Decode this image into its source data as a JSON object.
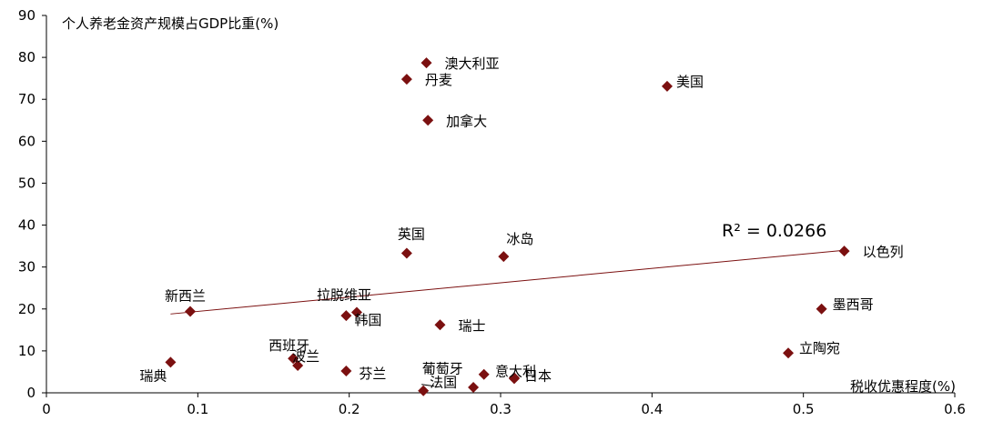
{
  "chart_data": {
    "type": "scatter",
    "ylabel": "个人养老金资产规模占GDP比重(%)",
    "xlabel": "税收优惠程度(%)",
    "xlim": [
      0,
      0.6
    ],
    "ylim": [
      0,
      90
    ],
    "xticks": [
      "0",
      "0.1",
      "0.2",
      "0.3",
      "0.4",
      "0.5",
      "0.6"
    ],
    "xtick_values": [
      0,
      0.1,
      0.2,
      0.3,
      0.4,
      0.5,
      0.6
    ],
    "yticks": [
      "0",
      "10",
      "20",
      "30",
      "40",
      "50",
      "60",
      "70",
      "80",
      "90"
    ],
    "ytick_values": [
      0,
      10,
      20,
      30,
      40,
      50,
      60,
      70,
      80,
      90
    ],
    "grid": false,
    "marker": "diamond",
    "marker_color": "#7b1010",
    "trendline_color": "#7b1010",
    "r_squared_label": "R² = 0.0266",
    "trendline": {
      "x": [
        0.082,
        0.527
      ],
      "y": [
        18.8,
        34
      ]
    },
    "points": [
      {
        "label": "澳大利亚",
        "x": 0.251,
        "y": 78.7
      },
      {
        "label": "丹麦",
        "x": 0.238,
        "y": 74.8
      },
      {
        "label": "美国",
        "x": 0.41,
        "y": 73.1
      },
      {
        "label": "加拿大",
        "x": 0.252,
        "y": 65.0
      },
      {
        "label": "英国",
        "x": 0.238,
        "y": 33.3
      },
      {
        "label": "冰岛",
        "x": 0.302,
        "y": 32.5
      },
      {
        "label": "以色列",
        "x": 0.527,
        "y": 33.8
      },
      {
        "label": "新西兰",
        "x": 0.095,
        "y": 19.4
      },
      {
        "label": "拉脱维亚",
        "x": 0.205,
        "y": 19.2
      },
      {
        "label": "韩国",
        "x": 0.198,
        "y": 18.4
      },
      {
        "label": "墨西哥",
        "x": 0.512,
        "y": 20.0
      },
      {
        "label": "瑞士",
        "x": 0.26,
        "y": 16.2
      },
      {
        "label": "立陶宛",
        "x": 0.49,
        "y": 9.5
      },
      {
        "label": "西班牙",
        "x": 0.163,
        "y": 8.2
      },
      {
        "label": "波兰",
        "x": 0.166,
        "y": 6.5
      },
      {
        "label": "瑞典",
        "x": 0.082,
        "y": 7.3
      },
      {
        "label": "芬兰",
        "x": 0.198,
        "y": 5.2
      },
      {
        "label": "葡萄牙",
        "x": 0.289,
        "y": 4.4
      },
      {
        "label": "意大利",
        "x": 0.309,
        "y": 3.6
      },
      {
        "label": "日本",
        "x": 0.309,
        "y": 3.4
      },
      {
        "label": "法国",
        "x": 0.249,
        "y": 0.5
      },
      {
        "label": "",
        "x": 0.282,
        "y": 1.3
      }
    ]
  }
}
